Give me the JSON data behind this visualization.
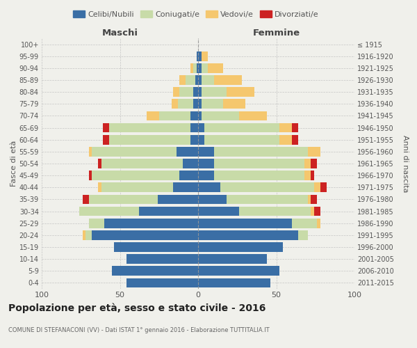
{
  "age_groups": [
    "0-4",
    "5-9",
    "10-14",
    "15-19",
    "20-24",
    "25-29",
    "30-34",
    "35-39",
    "40-44",
    "45-49",
    "50-54",
    "55-59",
    "60-64",
    "65-69",
    "70-74",
    "75-79",
    "80-84",
    "85-89",
    "90-94",
    "95-99",
    "100+"
  ],
  "birth_years": [
    "2011-2015",
    "2006-2010",
    "2001-2005",
    "1996-2000",
    "1991-1995",
    "1986-1990",
    "1981-1985",
    "1976-1980",
    "1971-1975",
    "1966-1970",
    "1961-1965",
    "1956-1960",
    "1951-1955",
    "1946-1950",
    "1941-1945",
    "1936-1940",
    "1931-1935",
    "1926-1930",
    "1921-1925",
    "1916-1920",
    "≤ 1915"
  ],
  "male_celibi": [
    46,
    55,
    46,
    54,
    68,
    60,
    38,
    26,
    16,
    12,
    10,
    14,
    5,
    5,
    5,
    3,
    3,
    2,
    1,
    1,
    0
  ],
  "male_coniugati": [
    0,
    0,
    0,
    0,
    4,
    10,
    38,
    44,
    46,
    56,
    52,
    54,
    52,
    52,
    20,
    10,
    9,
    6,
    2,
    0,
    0
  ],
  "male_vedovi": [
    0,
    0,
    0,
    0,
    2,
    0,
    0,
    0,
    2,
    0,
    0,
    2,
    0,
    0,
    8,
    4,
    4,
    4,
    2,
    0,
    0
  ],
  "male_divorziati": [
    0,
    0,
    0,
    0,
    0,
    0,
    0,
    4,
    0,
    2,
    2,
    0,
    4,
    4,
    0,
    0,
    0,
    0,
    0,
    0,
    0
  ],
  "female_celibi": [
    46,
    52,
    44,
    54,
    64,
    60,
    26,
    18,
    14,
    10,
    10,
    10,
    4,
    4,
    2,
    2,
    2,
    2,
    2,
    2,
    0
  ],
  "female_coniugati": [
    0,
    0,
    0,
    0,
    6,
    16,
    46,
    52,
    60,
    58,
    58,
    60,
    48,
    48,
    24,
    14,
    16,
    8,
    4,
    0,
    0
  ],
  "female_vedovi": [
    0,
    0,
    0,
    0,
    0,
    2,
    2,
    2,
    4,
    4,
    4,
    8,
    8,
    8,
    18,
    14,
    18,
    18,
    10,
    4,
    0
  ],
  "female_divorziati": [
    0,
    0,
    0,
    0,
    0,
    0,
    4,
    4,
    4,
    2,
    4,
    0,
    4,
    4,
    0,
    0,
    0,
    0,
    0,
    0,
    0
  ],
  "colors": {
    "celibi": "#3a6ea5",
    "coniugati": "#c8dba8",
    "vedovi": "#f5c76e",
    "divorziati": "#cc2222"
  },
  "xlim": 100,
  "title": "Popolazione per età, sesso e stato civile - 2016",
  "subtitle": "COMUNE DI STEFANACONI (VV) - Dati ISTAT 1° gennaio 2016 - Elaborazione TUTTITALIA.IT",
  "xlabel_left": "Maschi",
  "xlabel_right": "Femmine",
  "ylabel_left": "Fasce di età",
  "ylabel_right": "Anni di nascita",
  "bg_color": "#f0f0eb",
  "grid_color": "#bbbbbb"
}
